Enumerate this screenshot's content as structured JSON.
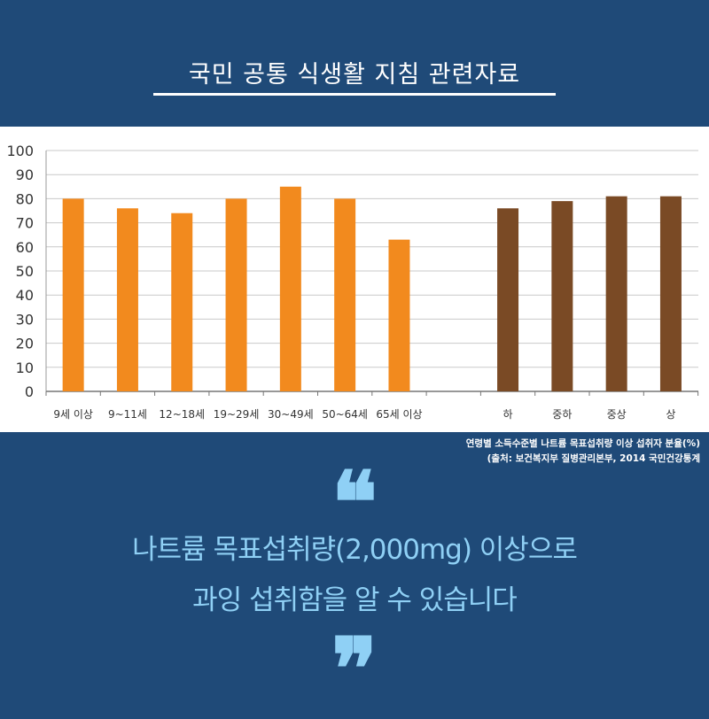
{
  "header": {
    "title": "국민 공통 식생활 지침 관련자료"
  },
  "chart_data": {
    "type": "bar",
    "categories": [
      "9세 이상",
      "9~11세",
      "12~18세",
      "19~29세",
      "30~49세",
      "50~64세",
      "65세 이상",
      "하",
      "중하",
      "중상",
      "상"
    ],
    "values": [
      80,
      76,
      74,
      80,
      85,
      80,
      63,
      76,
      79,
      81,
      81
    ],
    "groups": [
      {
        "name": "연령별",
        "color": "#f28a1e",
        "indices": [
          0,
          1,
          2,
          3,
          4,
          5,
          6
        ]
      },
      {
        "name": "소득수준별",
        "color": "#7a4a25",
        "indices": [
          7,
          8,
          9,
          10
        ]
      }
    ],
    "ylim": [
      0,
      100
    ],
    "yticks": [
      0,
      10,
      20,
      30,
      40,
      50,
      60,
      70,
      80,
      90,
      100
    ],
    "grid": true,
    "xlabel": "",
    "ylabel": ""
  },
  "caption": {
    "line1": "연령별 소득수준별 나트륨 목표섭취량 이상 섭취자 분율(%)",
    "line2": "(출처: 보건복지부 질병관리본부, 2014 국민건강통계"
  },
  "quote": {
    "open": "❝",
    "line1": "나트륨 목표섭취량(2,000mg) 이상으로",
    "line2": "과잉 섭취함을 알 수 있습니다",
    "close": "❞"
  }
}
